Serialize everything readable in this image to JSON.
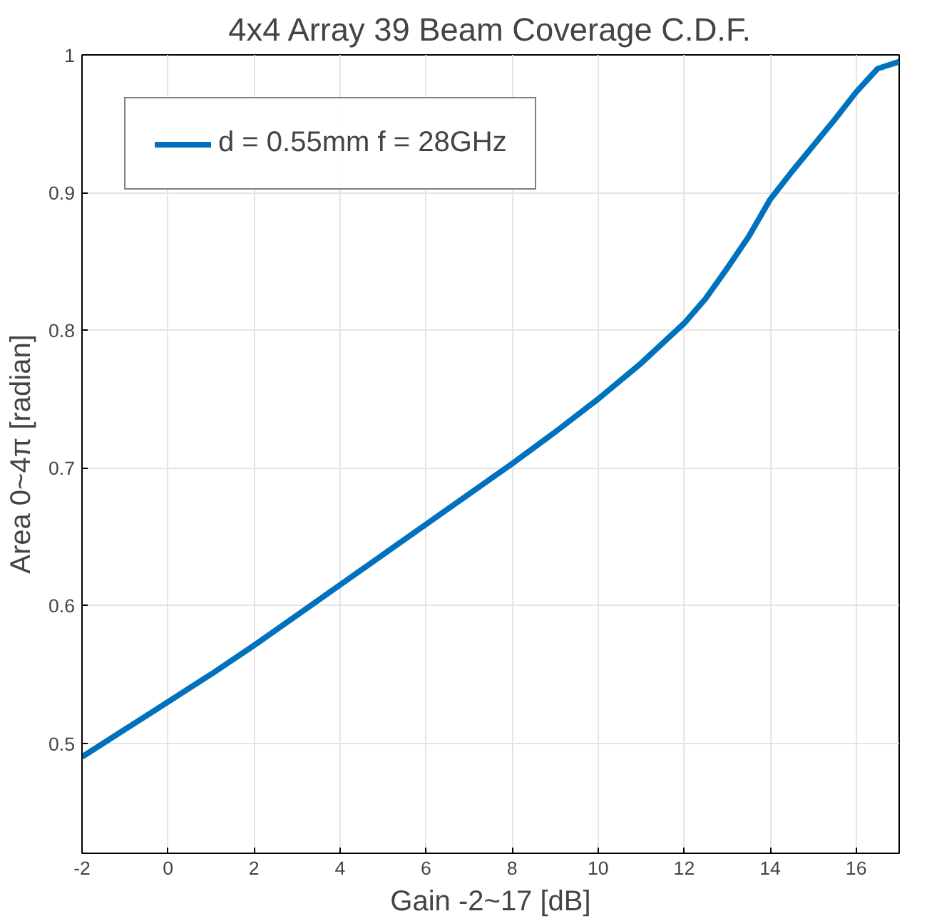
{
  "chart_data": {
    "type": "line",
    "title": "4x4 Array 39 Beam Coverage C.D.F.",
    "xlabel": "Gain -2~17 [dB]",
    "ylabel": "Area 0~4π [radian]",
    "x": [
      -2,
      -1,
      0,
      1,
      2,
      3,
      4,
      5,
      6,
      7,
      8,
      9,
      10,
      11,
      12,
      12.5,
      13,
      13.5,
      14,
      14.5,
      15,
      15.5,
      16,
      16.5,
      17
    ],
    "series": [
      {
        "name": "d = 0.55mm f = 28GHz",
        "color": "#0072bd",
        "values": [
          0.49,
          0.51,
          0.53,
          0.55,
          0.571,
          0.593,
          0.615,
          0.637,
          0.659,
          0.681,
          0.703,
          0.726,
          0.75,
          0.776,
          0.805,
          0.823,
          0.845,
          0.868,
          0.895,
          0.915,
          0.934,
          0.953,
          0.973,
          0.99,
          0.995
        ]
      }
    ],
    "xlim": [
      -2,
      17
    ],
    "ylim": [
      0.42,
      1
    ],
    "xticks": [
      -2,
      0,
      2,
      4,
      6,
      8,
      10,
      12,
      14,
      16
    ],
    "yticks": [
      0.5,
      0.6,
      0.7,
      0.8,
      0.9,
      1
    ],
    "grid": true,
    "legend": "top left",
    "line_style": "solid",
    "marker": "none"
  }
}
